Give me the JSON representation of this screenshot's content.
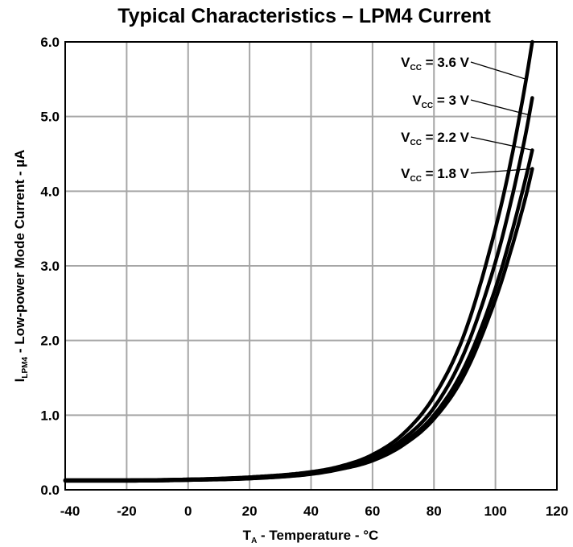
{
  "chart_data": {
    "type": "line",
    "title": "Typical Characteristics – LPM4 Current",
    "xlabel": {
      "main": "T",
      "sub": "A",
      "rest": " - Temperature - °C"
    },
    "ylabel": {
      "main": "I",
      "sub": "LPM4",
      "rest": " - Low-power Mode Current - µA"
    },
    "xlim": [
      -40,
      120
    ],
    "ylim": [
      0,
      6
    ],
    "xticks": [
      -40,
      -20,
      0,
      20,
      40,
      60,
      80,
      100,
      120
    ],
    "xtick_labels": [
      "-40",
      "-20",
      "0",
      "20",
      "40",
      "60",
      "80",
      "100",
      "120"
    ],
    "yticks": [
      0,
      1,
      2,
      3,
      4,
      5,
      6
    ],
    "ytick_labels": [
      "0.0",
      "1.0",
      "2.0",
      "3.0",
      "4.0",
      "5.0",
      "6.0"
    ],
    "grid": true,
    "legend": "none",
    "series": [
      {
        "label": {
          "main": "V",
          "sub": "CC",
          "rest": " = 3.6 V"
        },
        "x": [
          -40,
          -20,
          0,
          20,
          40,
          50,
          60,
          70,
          80,
          90,
          100,
          105,
          110,
          112
        ],
        "values": [
          0.13,
          0.13,
          0.14,
          0.17,
          0.24,
          0.32,
          0.47,
          0.75,
          1.25,
          2.1,
          3.5,
          4.4,
          5.5,
          6.0
        ]
      },
      {
        "label": {
          "main": "V",
          "sub": "CC",
          "rest": " = 3 V"
        },
        "x": [
          -40,
          -20,
          0,
          20,
          40,
          50,
          60,
          70,
          80,
          90,
          100,
          105,
          110,
          112
        ],
        "values": [
          0.13,
          0.13,
          0.14,
          0.16,
          0.23,
          0.3,
          0.43,
          0.68,
          1.1,
          1.85,
          3.05,
          3.85,
          4.8,
          5.25
        ]
      },
      {
        "label": {
          "main": "V",
          "sub": "CC",
          "rest": " = 2.2 V"
        },
        "x": [
          -40,
          -20,
          0,
          20,
          40,
          50,
          60,
          70,
          80,
          90,
          100,
          105,
          110,
          112
        ],
        "values": [
          0.12,
          0.12,
          0.13,
          0.16,
          0.22,
          0.29,
          0.41,
          0.63,
          1.0,
          1.65,
          2.7,
          3.4,
          4.2,
          4.55
        ]
      },
      {
        "label": {
          "main": "V",
          "sub": "CC",
          "rest": " = 1.8 V"
        },
        "x": [
          -40,
          -20,
          0,
          20,
          40,
          50,
          60,
          70,
          80,
          90,
          100,
          105,
          110,
          112
        ],
        "values": [
          0.12,
          0.12,
          0.13,
          0.15,
          0.21,
          0.28,
          0.39,
          0.6,
          0.95,
          1.55,
          2.55,
          3.2,
          3.95,
          4.3
        ]
      }
    ]
  }
}
